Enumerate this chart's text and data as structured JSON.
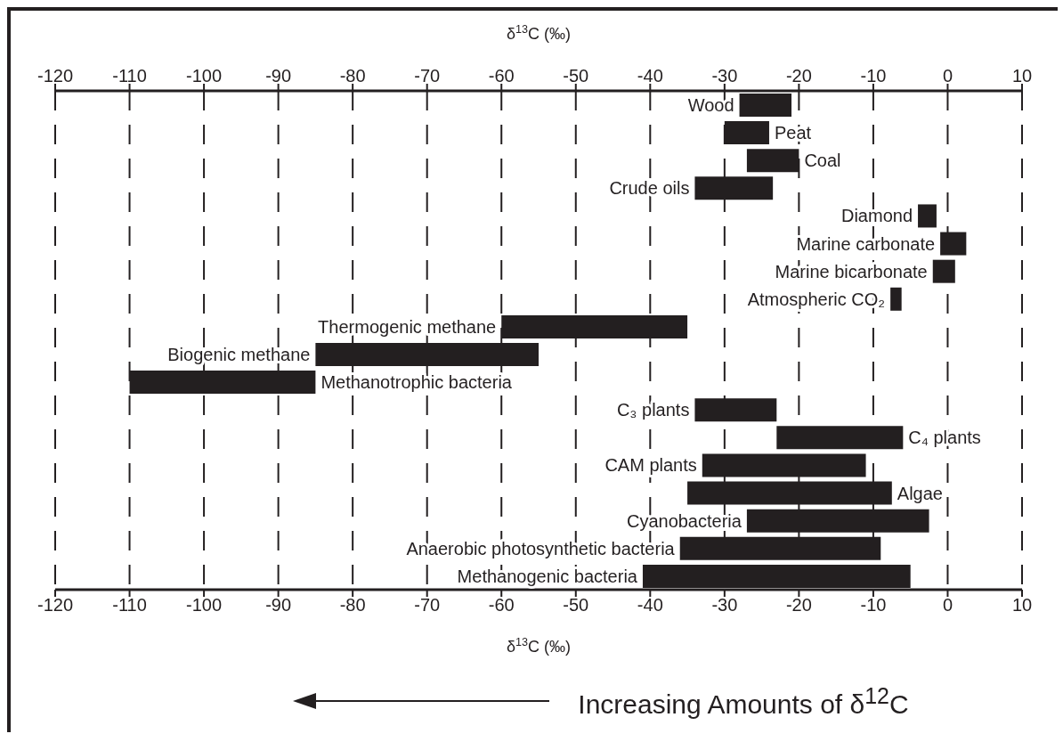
{
  "chart_data": {
    "type": "bar",
    "orientation": "horizontal",
    "xlabel": "δ$^{13}$C (‰)",
    "x2label": "δ$^{13}$C (‰)",
    "categories": [
      "Wood",
      "Peat",
      "Coal",
      "Crude oils",
      "Diamond",
      "Marine carbonate",
      "Marine bicarbonate",
      "Atmospheric CO₂",
      "Thermogenic methane",
      "Biogenic methane",
      "Methanotrophic bacteria",
      "C₃ plants",
      "C₄ plants",
      "CAM plants",
      "Algae",
      "Cyanobacteria",
      "Anaerobic photosynthetic bacteria",
      "Methanogenic bacteria"
    ],
    "base": [
      -28,
      -30,
      -27,
      -34,
      -4,
      -1,
      -2,
      -7.7,
      -60,
      -85,
      -110,
      -34,
      -23,
      -33,
      -35,
      -27,
      -36,
      -41
    ],
    "values": [
      7,
      6,
      7,
      10.5,
      2.5,
      3.5,
      3,
      1.5,
      25,
      30,
      25,
      11,
      17,
      22,
      27.5,
      24.5,
      27,
      36
    ],
    "color": "#231f20",
    "xlim": [
      -120,
      10
    ],
    "xticks": [
      -120,
      -110,
      -100,
      -90,
      -80,
      -70,
      -60,
      -50,
      -40,
      -30,
      -20,
      -10,
      0,
      10
    ],
    "x2lim": [
      -120,
      10
    ],
    "x2ticks": [
      -120,
      -110,
      -100,
      -90,
      -80,
      -70,
      -60,
      -50,
      -40,
      -30,
      -20,
      -10,
      0,
      10
    ],
    "grid": "x",
    "legend": false,
    "annotations": [
      "Increasing Amounts of δ$^{12}$C"
    ]
  }
}
